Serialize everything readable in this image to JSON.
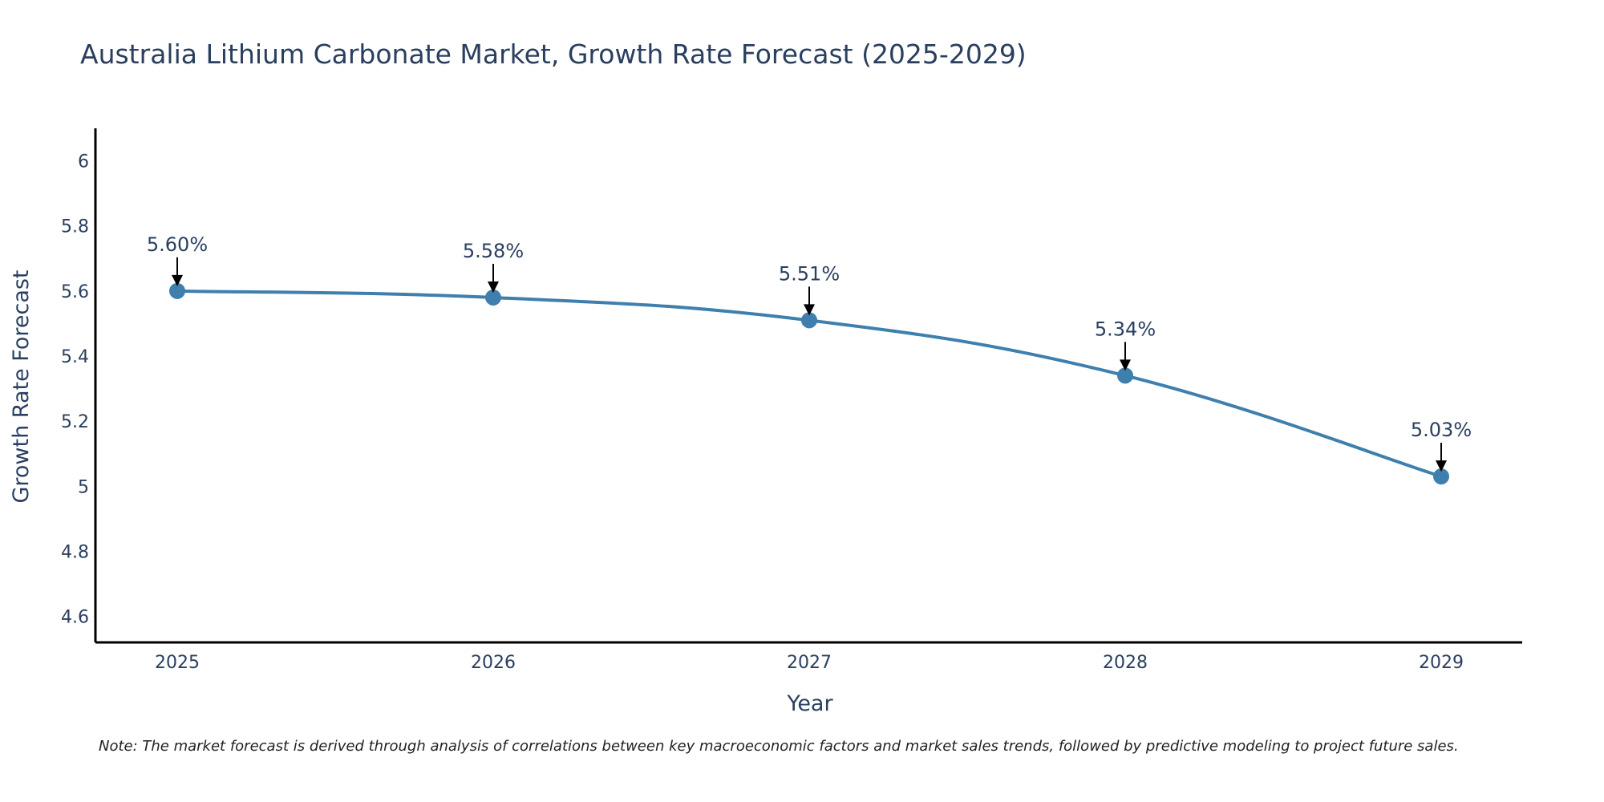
{
  "chart_data": {
    "type": "line",
    "title": "Australia Lithium Carbonate Market, Growth Rate Forecast (2025-2029)",
    "xlabel": "Year",
    "ylabel": "Growth Rate Forecast",
    "categories": [
      "2025",
      "2026",
      "2027",
      "2028",
      "2029"
    ],
    "series": [
      {
        "name": "Growth Rate Forecast",
        "values": [
          5.6,
          5.58,
          5.51,
          5.34,
          5.03
        ],
        "labels": [
          "5.60%",
          "5.58%",
          "5.51%",
          "5.34%",
          "5.03%"
        ],
        "color": "#3f7fae"
      }
    ],
    "ylim": [
      4.52,
      6.1
    ],
    "yticks": [
      4.6,
      4.8,
      5,
      5.2,
      5.4,
      5.6,
      5.8,
      6
    ],
    "ytick_labels": [
      "4.6",
      "4.8",
      "5",
      "5.2",
      "5.4",
      "5.6",
      "5.8",
      "6"
    ],
    "grid": false,
    "smooth": true,
    "annotation_arrows": true,
    "note": "Note: The market forecast is derived through analysis of correlations between key macroeconomic factors and market sales trends, followed by predictive modeling to project future sales."
  },
  "colors": {
    "line": "#3f7fae",
    "marker": "#3f7fae",
    "axis": "#000000",
    "text": "#2a3f5f"
  }
}
